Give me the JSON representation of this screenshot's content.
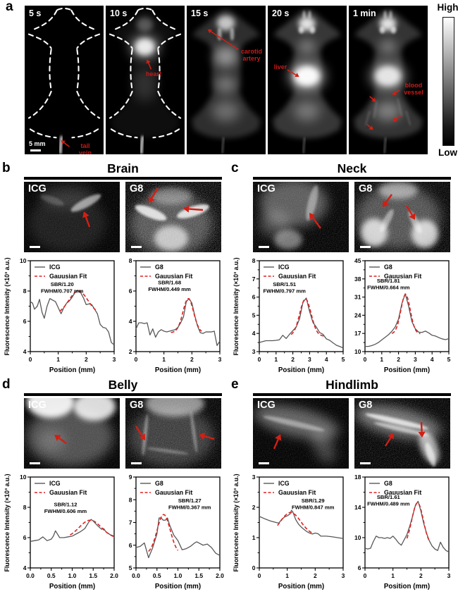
{
  "figure": {
    "panel_a": {
      "label": "a",
      "frames": [
        {
          "time_label": "5 s",
          "scale_bar": "5 mm",
          "annotations": [
            {
              "text": "tail vein"
            }
          ]
        },
        {
          "time_label": "10 s",
          "annotations": [
            {
              "text": "heart"
            }
          ]
        },
        {
          "time_label": "15 s",
          "annotations": [
            {
              "text": "carotid artery"
            }
          ]
        },
        {
          "time_label": "20 s",
          "annotations": [
            {
              "text": "liver"
            }
          ]
        },
        {
          "time_label": "1 min",
          "annotations": [
            {
              "text": "blood vessel"
            }
          ]
        }
      ],
      "colorbar": {
        "high": "High",
        "low": "Low"
      }
    },
    "panels": [
      {
        "label": "b",
        "title": "Brain",
        "images": [
          {
            "label": "ICG"
          },
          {
            "label": "G8"
          }
        ]
      },
      {
        "label": "c",
        "title": "Neck",
        "images": [
          {
            "label": "ICG"
          },
          {
            "label": "G8"
          }
        ]
      },
      {
        "label": "d",
        "title": "Belly",
        "images": [
          {
            "label": "ICG"
          },
          {
            "label": "G8"
          }
        ]
      },
      {
        "label": "e",
        "title": "Hindlimb",
        "images": [
          {
            "label": "ICG"
          },
          {
            "label": "G8"
          }
        ]
      }
    ]
  },
  "colors": {
    "curve": "#585858",
    "fit_red": "#e02020",
    "annotation_red": "#c81a1a",
    "arrow_red": "#d21f14",
    "background": "#ffffff",
    "image_bg": "#000000"
  },
  "chart_data": [
    {
      "type": "line",
      "panel": "b",
      "position": "left",
      "legend": [
        "ICG",
        "Gauusian Fit"
      ],
      "sbr_label": "SBR/1.20",
      "fwhm_label": "FWHM/0.707 mm",
      "xlabel": "Position (mm)",
      "ylabel": "Fluorescence Intensity (×10³ a.u.)",
      "xlim": [
        0,
        3
      ],
      "xtick_vals": [
        0,
        1,
        2,
        3
      ],
      "xticks": [
        "0",
        "1",
        "2",
        "3"
      ],
      "ylim": [
        4,
        10
      ],
      "ytick_vals": [
        4,
        6,
        8,
        10
      ],
      "yticks": [
        "4",
        "6",
        "8",
        "10"
      ],
      "x": [
        0,
        0.08,
        0.15,
        0.25,
        0.33,
        0.42,
        0.5,
        0.6,
        0.7,
        0.8,
        0.9,
        1.0,
        1.1,
        1.2,
        1.3,
        1.4,
        1.5,
        1.6,
        1.7,
        1.8,
        1.9,
        2.0,
        2.1,
        2.2,
        2.3,
        2.4,
        2.5,
        2.6,
        2.7,
        2.8,
        2.9,
        3.0
      ],
      "y": [
        7.3,
        7.2,
        6.8,
        7.0,
        7.45,
        6.6,
        6.2,
        7.0,
        7.5,
        7.4,
        7.3,
        6.9,
        6.5,
        6.9,
        7.2,
        7.35,
        7.6,
        7.9,
        8.05,
        7.9,
        7.55,
        7.1,
        7.15,
        7.1,
        6.8,
        6.5,
        5.8,
        5.6,
        5.55,
        5.3,
        4.6,
        4.45
      ],
      "fit": {
        "center": 1.72,
        "peak": 8.0,
        "baseline": 6.45,
        "width": 0.8,
        "range": [
          1.05,
          2.4
        ]
      },
      "ann_pos": [
        0.38,
        0.28
      ]
    },
    {
      "type": "line",
      "panel": "b",
      "position": "right",
      "legend": [
        "G8",
        "Gauusian Fit"
      ],
      "sbr_label": "SBR/1.68",
      "fwhm_label": "FWHM/0.449 mm",
      "xlabel": "Position (mm)",
      "ylabel": "",
      "xlim": [
        0,
        3
      ],
      "xtick_vals": [
        0,
        1,
        2,
        3
      ],
      "xticks": [
        "0",
        "1",
        "2",
        "3"
      ],
      "ylim": [
        2,
        8
      ],
      "ytick_vals": [
        2,
        4,
        6,
        8
      ],
      "yticks": [
        "2",
        "4",
        "6",
        "8"
      ],
      "x": [
        0,
        0.1,
        0.2,
        0.3,
        0.4,
        0.5,
        0.6,
        0.7,
        0.8,
        0.9,
        1.0,
        1.1,
        1.2,
        1.3,
        1.4,
        1.5,
        1.6,
        1.7,
        1.8,
        1.9,
        2.0,
        2.1,
        2.2,
        2.3,
        2.4,
        2.5,
        2.6,
        2.7,
        2.8,
        2.9,
        3.0
      ],
      "y": [
        3.5,
        3.9,
        3.9,
        3.85,
        3.9,
        3.1,
        3.5,
        2.95,
        3.3,
        3.45,
        3.35,
        3.3,
        3.35,
        3.4,
        3.45,
        3.6,
        3.9,
        4.3,
        5.3,
        5.5,
        5.2,
        4.4,
        3.7,
        3.25,
        3.2,
        3.3,
        3.3,
        3.3,
        3.35,
        2.4,
        2.7
      ],
      "fit": {
        "center": 1.87,
        "peak": 5.5,
        "baseline": 3.25,
        "width": 0.45,
        "range": [
          1.25,
          2.35
        ]
      },
      "ann_pos": [
        0.4,
        0.26
      ]
    },
    {
      "type": "line",
      "panel": "c",
      "position": "left",
      "legend": [
        "ICG",
        "Gauusian Fit"
      ],
      "sbr_label": "SBR/1.51",
      "fwhm_label": "FWHM/0.797 mm",
      "xlabel": "Position (mm)",
      "ylabel": "Fluorescence Intensity (×10³ a.u.)",
      "xlim": [
        0,
        5
      ],
      "xtick_vals": [
        0,
        1,
        2,
        3,
        4,
        5
      ],
      "xticks": [
        "0",
        "1",
        "2",
        "3",
        "4",
        "5"
      ],
      "ylim": [
        3,
        8
      ],
      "ytick_vals": [
        3,
        4,
        5,
        6,
        7,
        8
      ],
      "yticks": [
        "3",
        "4",
        "5",
        "6",
        "7",
        "8"
      ],
      "x": [
        0,
        0.2,
        0.4,
        0.6,
        0.8,
        1.0,
        1.2,
        1.4,
        1.6,
        1.8,
        2.0,
        2.2,
        2.4,
        2.6,
        2.8,
        3.0,
        3.2,
        3.4,
        3.6,
        3.8,
        4.0,
        4.2,
        4.4,
        4.6,
        4.8,
        5.0
      ],
      "y": [
        3.5,
        3.55,
        3.6,
        3.6,
        3.6,
        3.62,
        3.65,
        3.9,
        3.72,
        3.95,
        4.15,
        4.35,
        4.8,
        5.7,
        5.95,
        5.2,
        4.6,
        4.35,
        4.05,
        3.95,
        3.7,
        3.62,
        3.48,
        3.35,
        3.28,
        3.2
      ],
      "fit": {
        "center": 2.75,
        "peak": 5.9,
        "baseline": 3.85,
        "width": 0.8,
        "range": [
          1.9,
          3.95
        ]
      },
      "ann_pos": [
        0.3,
        0.28
      ]
    },
    {
      "type": "line",
      "panel": "c",
      "position": "right",
      "legend": [
        "G8",
        "Gauusian Fit"
      ],
      "sbr_label": "SBR/1.81",
      "fwhm_label": "FWHM/0.664 mm",
      "xlabel": "Position (mm)",
      "ylabel": "",
      "xlim": [
        0,
        5
      ],
      "xtick_vals": [
        0,
        1,
        2,
        3,
        4,
        5
      ],
      "xticks": [
        "0",
        "1",
        "2",
        "3",
        "4",
        "5"
      ],
      "ylim": [
        10,
        45
      ],
      "ytick_vals": [
        10,
        17,
        24,
        31,
        38,
        45
      ],
      "yticks": [
        "10",
        "17",
        "24",
        "31",
        "38",
        "45"
      ],
      "x": [
        0,
        0.2,
        0.4,
        0.6,
        0.8,
        1.0,
        1.2,
        1.4,
        1.6,
        1.8,
        2.0,
        2.2,
        2.4,
        2.6,
        2.8,
        3.0,
        3.2,
        3.4,
        3.6,
        3.8,
        4.0,
        4.2,
        4.4,
        4.6,
        4.8,
        5.0
      ],
      "y": [
        12,
        12,
        12.3,
        12.8,
        13.5,
        14.5,
        15.5,
        16.5,
        17.8,
        19.5,
        22.5,
        28.5,
        32.3,
        27.5,
        21.5,
        18.8,
        17.5,
        17.4,
        17.9,
        17.2,
        16.3,
        16.0,
        15.4,
        14.9,
        14.6,
        15.0
      ],
      "fit": {
        "center": 2.42,
        "peak": 32,
        "baseline": 16.8,
        "width": 0.66,
        "range": [
          1.6,
          3.3
        ]
      },
      "ann_pos": [
        0.28,
        0.24
      ]
    },
    {
      "type": "line",
      "panel": "d",
      "position": "left",
      "legend": [
        "ICG",
        "Gauusian Fit"
      ],
      "sbr_label": "SBR/1.12",
      "fwhm_label": "FWHM/0.606 mm",
      "xlabel": "Position (mm)",
      "ylabel": "Fluorescence Intensity (×10³ a.u.)",
      "xlim": [
        0,
        2
      ],
      "xtick_vals": [
        0,
        0.5,
        1.0,
        1.5,
        2.0
      ],
      "xticks": [
        "0.0",
        "0.5",
        "1.0",
        "1.5",
        "2.0"
      ],
      "ylim": [
        4,
        10
      ],
      "ytick_vals": [
        4,
        6,
        8,
        10
      ],
      "yticks": [
        "4",
        "6",
        "8",
        "10"
      ],
      "x": [
        0,
        0.1,
        0.2,
        0.3,
        0.4,
        0.5,
        0.55,
        0.6,
        0.7,
        0.8,
        0.9,
        1.0,
        1.1,
        1.2,
        1.3,
        1.4,
        1.45,
        1.5,
        1.6,
        1.7,
        1.75,
        1.8,
        1.9,
        2.0
      ],
      "y": [
        5.75,
        5.8,
        5.85,
        6.05,
        5.8,
        5.9,
        6.1,
        6.45,
        6.0,
        6.0,
        6.05,
        6.1,
        6.25,
        6.4,
        6.6,
        7.05,
        7.2,
        7.1,
        6.8,
        6.55,
        6.6,
        6.4,
        6.2,
        6.1
      ],
      "fit": {
        "center": 1.43,
        "peak": 7.15,
        "baseline": 5.95,
        "width": 0.62,
        "range": [
          0.95,
          2.0
        ]
      },
      "ann_pos": [
        0.42,
        0.32
      ]
    },
    {
      "type": "line",
      "panel": "d",
      "position": "right",
      "legend": [
        "G8",
        "Gauusian Fit"
      ],
      "sbr_label": "SBR/1.27",
      "fwhm_label": "FWHM/0.367 mm",
      "xlabel": "Position (mm)",
      "ylabel": "",
      "xlim": [
        0,
        2
      ],
      "xtick_vals": [
        0,
        0.5,
        1.0,
        1.5,
        2.0
      ],
      "xticks": [
        "0.0",
        "0.5",
        "1.0",
        "1.5",
        "2.0"
      ],
      "ylim": [
        5,
        9
      ],
      "ytick_vals": [
        5,
        6,
        7,
        8,
        9
      ],
      "yticks": [
        "5",
        "6",
        "7",
        "8",
        "9"
      ],
      "x": [
        0,
        0.1,
        0.2,
        0.3,
        0.4,
        0.5,
        0.55,
        0.6,
        0.65,
        0.7,
        0.75,
        0.8,
        0.9,
        1.0,
        1.1,
        1.2,
        1.3,
        1.4,
        1.45,
        1.5,
        1.6,
        1.7,
        1.8,
        1.9,
        2.0
      ],
      "y": [
        5.9,
        5.95,
        6.1,
        5.45,
        5.9,
        6.5,
        7.2,
        7.2,
        7.1,
        7.1,
        7.2,
        6.9,
        6.45,
        6.2,
        5.8,
        5.85,
        5.95,
        6.1,
        6.15,
        6.1,
        6.0,
        6.05,
        5.9,
        5.65,
        5.55
      ],
      "fit": {
        "center": 0.66,
        "peak": 7.35,
        "baseline": 5.6,
        "width": 0.37,
        "range": [
          0.3,
          1.0
        ]
      },
      "ann_pos": [
        0.64,
        0.28
      ]
    },
    {
      "type": "line",
      "panel": "e",
      "position": "left",
      "legend": [
        "ICG",
        "Gauusian Fit"
      ],
      "sbr_label": "SBR/1.29",
      "fwhm_label": "FWHM/0.847 mm",
      "xlabel": "Position (mm)",
      "ylabel": "Fluorescence Intensity (×10³ a.u.)",
      "xlim": [
        0,
        3
      ],
      "xtick_vals": [
        0,
        1,
        2,
        3
      ],
      "xticks": [
        "0",
        "1",
        "2",
        "3"
      ],
      "ylim": [
        0,
        3
      ],
      "ytick_vals": [
        0,
        1,
        2,
        3
      ],
      "yticks": [
        "0",
        "1",
        "2",
        "3"
      ],
      "x": [
        0,
        0.2,
        0.4,
        0.6,
        0.7,
        0.8,
        0.9,
        1.0,
        1.1,
        1.15,
        1.2,
        1.3,
        1.4,
        1.5,
        1.6,
        1.7,
        1.8,
        1.9,
        2.0,
        2.1,
        2.2,
        2.4,
        2.6,
        2.8,
        3.0
      ],
      "y": [
        1.7,
        1.62,
        1.55,
        1.5,
        1.48,
        1.6,
        1.68,
        1.72,
        1.78,
        1.9,
        1.85,
        1.6,
        1.45,
        1.35,
        1.27,
        1.2,
        1.15,
        1.12,
        1.15,
        1.13,
        1.05,
        1.05,
        1.03,
        1.0,
        0.97
      ],
      "fit": {
        "center": 1.12,
        "peak": 1.83,
        "baseline": 1.08,
        "width": 0.85,
        "range": [
          0.65,
          1.95
        ]
      },
      "ann_pos": [
        0.64,
        0.28
      ]
    },
    {
      "type": "line",
      "panel": "e",
      "position": "right",
      "legend": [
        "G8",
        "Gauusian Fit"
      ],
      "sbr_label": "SBR/1.61",
      "fwhm_label": "FWHM/0.489 mm",
      "xlabel": "Position (mm)",
      "ylabel": "",
      "xlim": [
        0,
        3
      ],
      "xtick_vals": [
        0,
        1,
        2,
        3
      ],
      "xticks": [
        "0",
        "1",
        "2",
        "3"
      ],
      "ylim": [
        6,
        18
      ],
      "ytick_vals": [
        6,
        10,
        14,
        18
      ],
      "yticks": [
        "6",
        "10",
        "14",
        "18"
      ],
      "x": [
        0,
        0.1,
        0.2,
        0.3,
        0.4,
        0.5,
        0.6,
        0.7,
        0.8,
        0.9,
        1.0,
        1.1,
        1.2,
        1.3,
        1.4,
        1.5,
        1.6,
        1.7,
        1.8,
        1.9,
        2.0,
        2.1,
        2.2,
        2.3,
        2.4,
        2.5,
        2.6,
        2.7,
        2.8,
        2.9,
        3.0
      ],
      "y": [
        8.6,
        8.5,
        8.6,
        9.5,
        10.2,
        10.0,
        10.0,
        9.9,
        10.0,
        9.9,
        10.2,
        9.8,
        9.3,
        9.0,
        9.7,
        10.4,
        11.5,
        12.8,
        14.2,
        14.8,
        13.5,
        11.9,
        10.6,
        9.6,
        8.9,
        8.5,
        8.3,
        9.4,
        8.7,
        8.3,
        8.1
      ],
      "fit": {
        "center": 1.88,
        "peak": 14.6,
        "baseline": 8.8,
        "width": 0.49,
        "range": [
          1.5,
          2.3
        ]
      },
      "ann_pos": [
        0.28,
        0.24
      ]
    }
  ]
}
